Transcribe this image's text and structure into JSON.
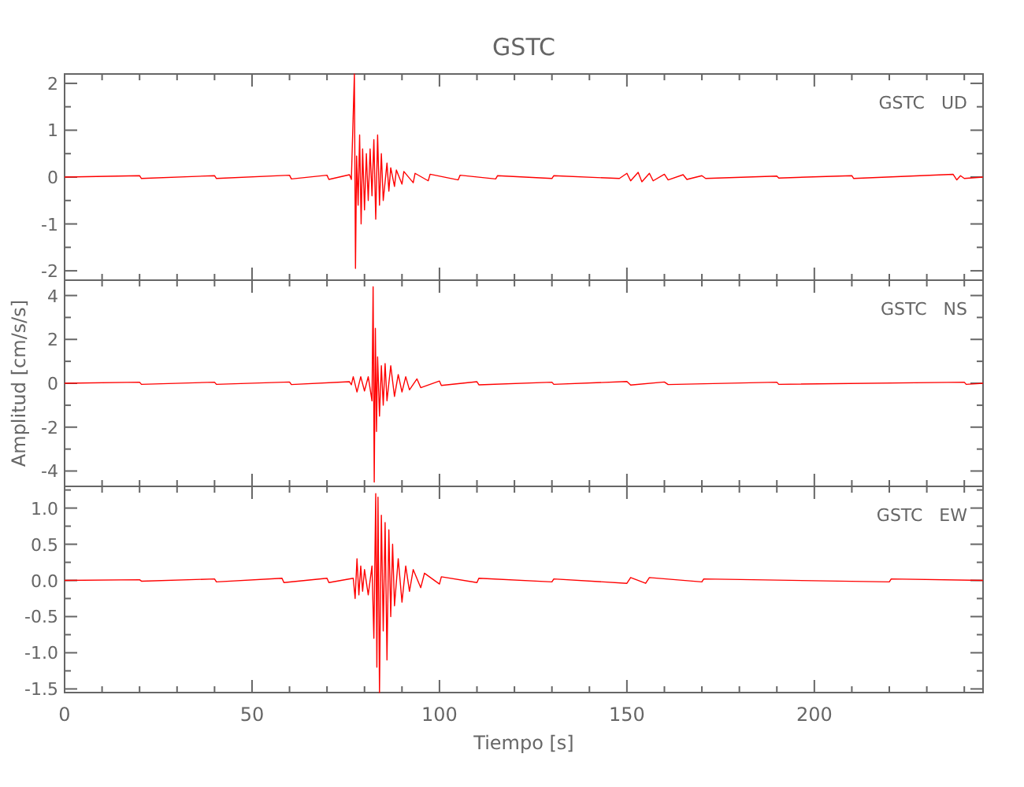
{
  "chart_data": [
    {
      "type": "line",
      "title": "GSTC",
      "annotations": [
        "GSTC   UD"
      ],
      "xlim": [
        0,
        245
      ],
      "ylim": [
        -2.2,
        2.2
      ],
      "xticks": [
        0,
        {
          "value": 10,
          "label": null
        },
        {
          "value": 20,
          "label": null
        },
        {
          "value": 30,
          "label": null
        },
        {
          "value": 40,
          "label": null
        },
        50,
        {
          "value": 60,
          "label": null
        },
        {
          "value": 70,
          "label": null
        },
        {
          "value": 80,
          "label": null
        },
        {
          "value": 90,
          "label": null
        },
        100,
        {
          "value": 110,
          "label": null
        },
        {
          "value": 120,
          "label": null
        },
        {
          "value": 130,
          "label": null
        },
        {
          "value": 140,
          "label": null
        },
        150,
        {
          "value": 160,
          "label": null
        },
        {
          "value": 170,
          "label": null
        },
        {
          "value": 180,
          "label": null
        },
        {
          "value": 190,
          "label": null
        },
        200,
        {
          "value": 210,
          "label": null
        },
        {
          "value": 220,
          "label": null
        },
        {
          "value": 230,
          "label": null
        },
        {
          "value": 240,
          "label": null
        }
      ],
      "yticks": [
        -2,
        {
          "value": -1.5,
          "label": null
        },
        -1,
        {
          "value": -0.5,
          "label": null
        },
        0,
        {
          "value": 0.5,
          "label": null
        },
        1,
        {
          "value": 1.5,
          "label": null
        },
        2
      ],
      "tick_labels": "y",
      "series": [
        {
          "color": "#ff0000",
          "x": [
            0,
            20,
            20.5,
            40,
            40.5,
            60,
            60.5,
            70,
            70.5,
            76,
            76.5,
            77.3,
            77.6,
            77.9,
            78.3,
            78.7,
            79.1,
            79.5,
            80,
            80.5,
            81,
            81.5,
            82,
            82.5,
            83,
            83.5,
            84,
            84.5,
            85,
            86,
            86.5,
            87,
            88,
            88.5,
            90,
            90.5,
            93,
            93.5,
            97,
            97.5,
            105,
            105.5,
            115,
            115.5,
            130,
            130.5,
            148,
            150,
            151,
            153,
            154,
            156,
            157,
            160,
            161,
            165,
            166,
            170,
            171,
            190,
            190.5,
            210,
            210.5,
            237,
            238,
            239,
            240,
            245
          ],
          "values": [
            0,
            0.03,
            -0.03,
            0.03,
            -0.03,
            0.04,
            -0.04,
            0.04,
            -0.05,
            0.05,
            -0.05,
            2.2,
            -1.95,
            0.45,
            -0.6,
            0.9,
            -1.0,
            0.6,
            -0.7,
            0.5,
            -0.5,
            0.6,
            -0.4,
            0.8,
            -0.9,
            0.9,
            -0.6,
            0.5,
            -0.5,
            0.3,
            -0.3,
            0.2,
            -0.2,
            0.15,
            -0.15,
            0.12,
            -0.12,
            0.08,
            -0.08,
            0.06,
            -0.06,
            0.04,
            -0.04,
            0.03,
            -0.03,
            0.03,
            -0.03,
            0.08,
            -0.08,
            0.1,
            -0.1,
            0.08,
            -0.08,
            0.06,
            -0.06,
            0.05,
            -0.05,
            0.03,
            -0.03,
            0.02,
            -0.02,
            0.03,
            -0.03,
            0.06,
            -0.06,
            0.03,
            -0.03,
            0
          ]
        }
      ]
    },
    {
      "type": "line",
      "ylabel": "Amplitud [cm/s/s]",
      "annotations": [
        "GSTC   NS"
      ],
      "xlim": [
        0,
        245
      ],
      "ylim": [
        -4.7,
        4.7
      ],
      "xticks": [
        0,
        {
          "value": 10,
          "label": null
        },
        {
          "value": 20,
          "label": null
        },
        {
          "value": 30,
          "label": null
        },
        {
          "value": 40,
          "label": null
        },
        50,
        {
          "value": 60,
          "label": null
        },
        {
          "value": 70,
          "label": null
        },
        {
          "value": 80,
          "label": null
        },
        {
          "value": 90,
          "label": null
        },
        100,
        {
          "value": 110,
          "label": null
        },
        {
          "value": 120,
          "label": null
        },
        {
          "value": 130,
          "label": null
        },
        {
          "value": 140,
          "label": null
        },
        150,
        {
          "value": 160,
          "label": null
        },
        {
          "value": 170,
          "label": null
        },
        {
          "value": 180,
          "label": null
        },
        {
          "value": 190,
          "label": null
        },
        200,
        {
          "value": 210,
          "label": null
        },
        {
          "value": 220,
          "label": null
        },
        {
          "value": 230,
          "label": null
        },
        {
          "value": 240,
          "label": null
        }
      ],
      "yticks": [
        -4,
        {
          "value": -3,
          "label": null
        },
        -2,
        {
          "value": -1,
          "label": null
        },
        0,
        {
          "value": 1,
          "label": null
        },
        2,
        {
          "value": 3,
          "label": null
        },
        4
      ],
      "tick_labels": "y",
      "series": [
        {
          "color": "#ff0000",
          "x": [
            0,
            20,
            20.5,
            40,
            40.5,
            60,
            60.5,
            76,
            76.5,
            77,
            78,
            79,
            80,
            81,
            82,
            82.3,
            82.6,
            82.9,
            83.2,
            83.5,
            84,
            84.5,
            85,
            85.5,
            86,
            87,
            88,
            89,
            90,
            91,
            92,
            94,
            95,
            100,
            100.5,
            110,
            110.5,
            130,
            130.5,
            150,
            151,
            160,
            161,
            190,
            190.5,
            240,
            240.5,
            245
          ],
          "values": [
            0,
            0.05,
            -0.05,
            0.05,
            -0.05,
            0.06,
            -0.06,
            0.07,
            -0.07,
            0.3,
            -0.4,
            0.3,
            -0.35,
            0.3,
            -0.8,
            4.4,
            -4.5,
            2.5,
            -2.2,
            1.2,
            -1.5,
            0.8,
            -1.0,
            0.9,
            -0.8,
            0.8,
            -0.6,
            0.4,
            -0.4,
            0.3,
            -0.3,
            0.2,
            -0.2,
            0.1,
            -0.1,
            0.07,
            -0.07,
            0.05,
            -0.05,
            0.08,
            -0.08,
            0.06,
            -0.06,
            0.05,
            -0.05,
            0.05,
            -0.05,
            0
          ]
        }
      ]
    },
    {
      "type": "line",
      "xlabel": "Tiempo [s]",
      "annotations": [
        "GSTC   EW"
      ],
      "xlim": [
        0,
        245
      ],
      "ylim": [
        -1.55,
        1.3
      ],
      "xticks": [
        0,
        {
          "value": 10,
          "label": null
        },
        {
          "value": 20,
          "label": null
        },
        {
          "value": 30,
          "label": null
        },
        {
          "value": 40,
          "label": null
        },
        50,
        {
          "value": 60,
          "label": null
        },
        {
          "value": 70,
          "label": null
        },
        {
          "value": 80,
          "label": null
        },
        {
          "value": 90,
          "label": null
        },
        100,
        {
          "value": 110,
          "label": null
        },
        {
          "value": 120,
          "label": null
        },
        {
          "value": 130,
          "label": null
        },
        {
          "value": 140,
          "label": null
        },
        150,
        {
          "value": 160,
          "label": null
        },
        {
          "value": 170,
          "label": null
        },
        {
          "value": 180,
          "label": null
        },
        {
          "value": 190,
          "label": null
        },
        200,
        {
          "value": 210,
          "label": null
        },
        {
          "value": 220,
          "label": null
        },
        {
          "value": 230,
          "label": null
        },
        {
          "value": 240,
          "label": null
        }
      ],
      "yticks": [
        {
          "value": -1.5,
          "label": "-1.5"
        },
        {
          "value": -1.25,
          "label": null
        },
        {
          "value": -1,
          "label": "-1.0"
        },
        {
          "value": -0.75,
          "label": null
        },
        {
          "value": -0.5,
          "label": "-0.5"
        },
        {
          "value": -0.25,
          "label": null
        },
        {
          "value": 0,
          "label": "0.0"
        },
        {
          "value": 0.25,
          "label": null
        },
        {
          "value": 0.5,
          "label": "0.5"
        },
        {
          "value": 0.75,
          "label": null
        },
        {
          "value": 1,
          "label": "1.0"
        },
        {
          "value": 1.25,
          "label": null
        }
      ],
      "series": [
        {
          "color": "#ff0000",
          "x": [
            0,
            20,
            20.5,
            40,
            40.5,
            58,
            58.5,
            70,
            70.5,
            77,
            77.5,
            78,
            78.5,
            79,
            79.5,
            80,
            81,
            82,
            82.5,
            83,
            83.3,
            83.6,
            84,
            84.5,
            85,
            85.5,
            86,
            86.5,
            87,
            87.5,
            88,
            89,
            90,
            91,
            92,
            93,
            95,
            96,
            100,
            100.5,
            110,
            110.5,
            130,
            130.5,
            150,
            151,
            155,
            156,
            170,
            170.5,
            220,
            220.5,
            245
          ],
          "values": [
            0,
            0.01,
            -0.01,
            0.02,
            -0.02,
            0.03,
            -0.03,
            0.03,
            -0.03,
            0.03,
            -0.25,
            0.3,
            -0.2,
            0.2,
            -0.15,
            0.15,
            -0.2,
            0.2,
            -0.8,
            1.2,
            -1.2,
            1.15,
            -1.55,
            0.9,
            -0.7,
            0.8,
            -1.1,
            0.7,
            -0.5,
            0.5,
            -0.35,
            0.3,
            -0.3,
            0.2,
            -0.15,
            0.15,
            -0.1,
            0.1,
            -0.05,
            0.05,
            -0.03,
            0.03,
            -0.02,
            0.02,
            -0.04,
            0.04,
            -0.04,
            0.04,
            -0.02,
            0.02,
            -0.02,
            0.02,
            0
          ]
        }
      ]
    }
  ]
}
